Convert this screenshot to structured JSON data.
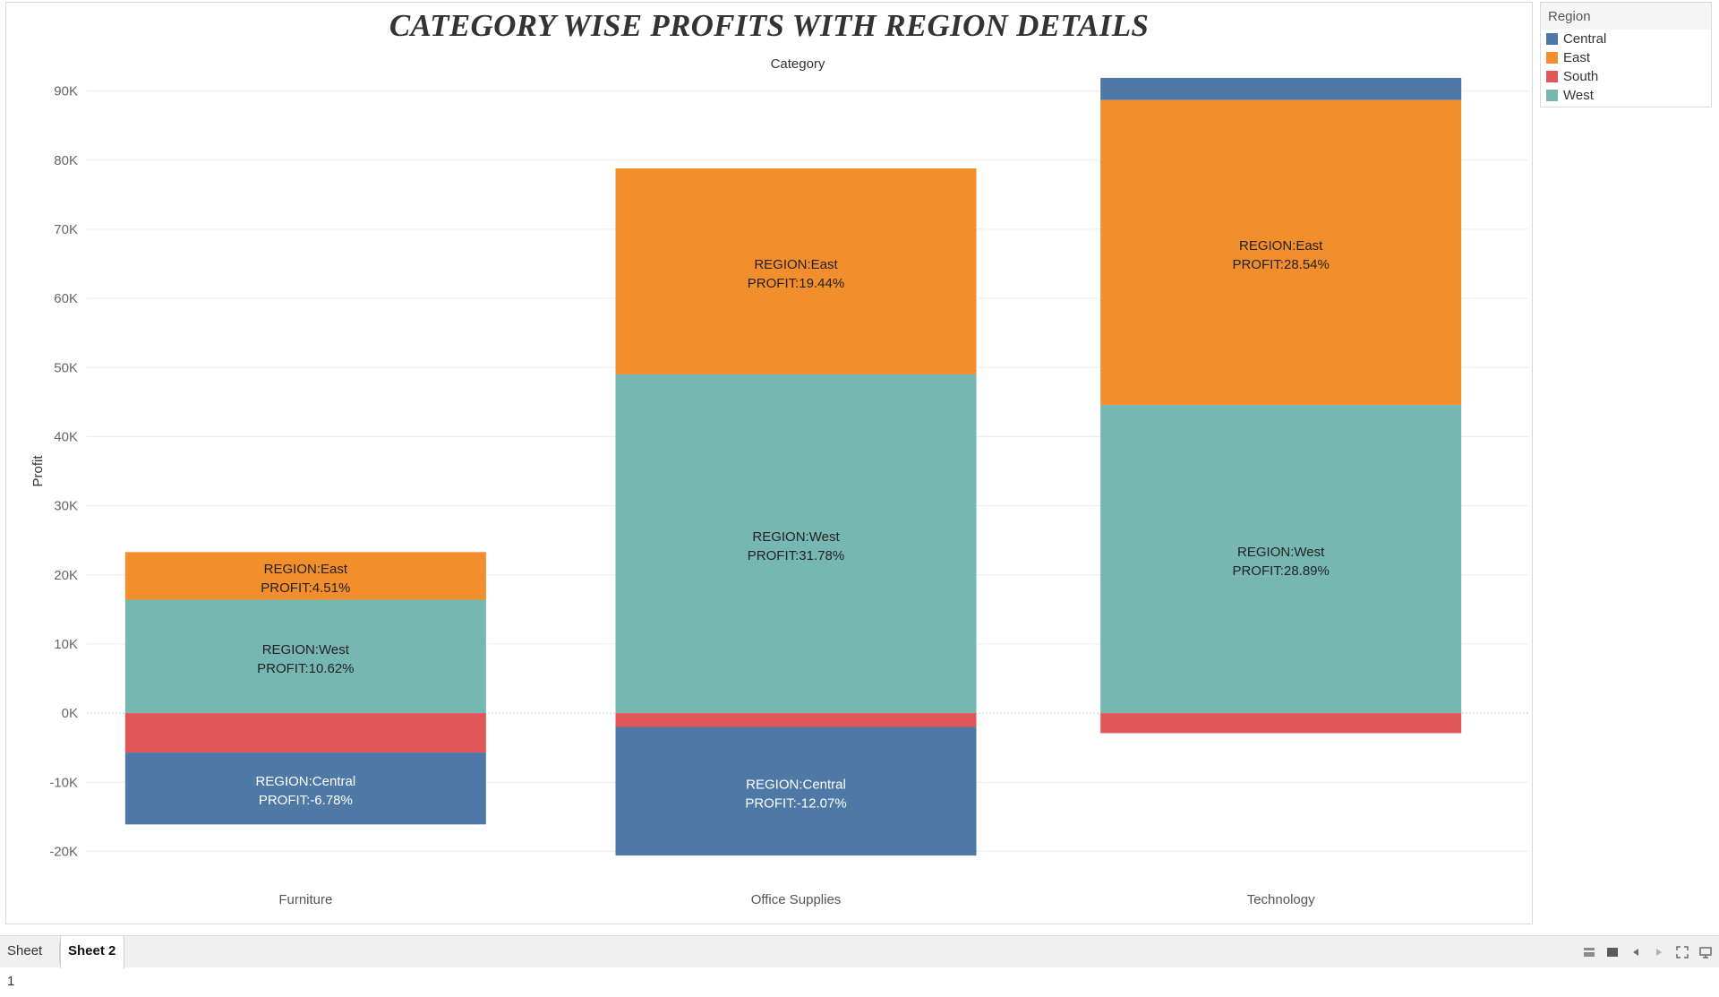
{
  "chart_data": {
    "type": "bar",
    "stacked": true,
    "title": "CATEGORY WISE PROFITS WITH REGION DETAILS",
    "column_header": "Category",
    "ylabel": "Profit",
    "ylim": [
      -25000,
      95000
    ],
    "y_ticks": [
      -20000,
      -10000,
      0,
      10000,
      20000,
      30000,
      40000,
      50000,
      60000,
      70000,
      80000,
      90000
    ],
    "y_tick_labels": [
      "-20K",
      "-10K",
      "0K",
      "10K",
      "20K",
      "30K",
      "40K",
      "50K",
      "60K",
      "70K",
      "80K",
      "90K"
    ],
    "grid": true,
    "legend_position": "top-right",
    "categories": [
      "Furniture",
      "Office Supplies",
      "Technology"
    ],
    "series": [
      {
        "name": "Central",
        "color": "#4e79a7",
        "values": [
          -10400,
          -18600,
          3200
        ],
        "labels": [
          "REGION:Central\nPROFIT:-6.78%",
          "REGION:Central\nPROFIT:-12.07%",
          ""
        ]
      },
      {
        "name": "East",
        "color": "#f28e2b",
        "values": [
          6900,
          29800,
          44100
        ],
        "labels": [
          "REGION:East\nPROFIT:4.51%",
          "REGION:East\nPROFIT:19.44%",
          "REGION:East\nPROFIT:28.54%"
        ]
      },
      {
        "name": "South",
        "color": "#e15759",
        "values": [
          -5700,
          -2000,
          -2900
        ],
        "labels": [
          "",
          "",
          ""
        ]
      },
      {
        "name": "West",
        "color": "#76b7b2",
        "values": [
          16400,
          49000,
          44600
        ],
        "labels": [
          "REGION:West\nPROFIT:10.62%",
          "REGION:West\nPROFIT:31.78%",
          "REGION:West\nPROFIT:28.89%"
        ]
      }
    ]
  },
  "legend": {
    "title": "Region",
    "items": [
      {
        "label": "Central",
        "color": "#4e79a7"
      },
      {
        "label": "East",
        "color": "#f28e2b"
      },
      {
        "label": "South",
        "color": "#e15759"
      },
      {
        "label": "West",
        "color": "#76b7b2"
      }
    ]
  },
  "tabs": [
    {
      "label": "Sheet 1",
      "active": false
    },
    {
      "label": "Sheet 2",
      "active": true
    }
  ],
  "nav": {
    "icons": [
      "show-sheet-sorter-icon",
      "show-filmstrip-icon",
      "previous-sheet-icon",
      "next-sheet-icon",
      "fit-width-icon",
      "presentation-mode-icon"
    ]
  }
}
